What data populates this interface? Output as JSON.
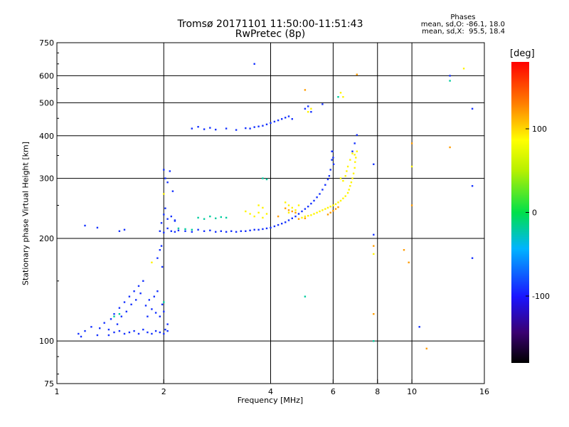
{
  "chart_data": {
    "type": "scatter",
    "title": "Tromsø 20171101 11:50:00-11:51:43",
    "subtitle": "RwPretec (8p)",
    "xlabel": "Frequency [MHz]",
    "ylabel": "Stationary phase Virtual Height [km]",
    "x_scale": "log",
    "y_scale": "log",
    "xlim": [
      1,
      16
    ],
    "ylim": [
      75,
      750
    ],
    "x_ticks": [
      {
        "value": 1,
        "label": "1"
      },
      {
        "value": 2,
        "label": "2"
      },
      {
        "value": 4,
        "label": "4"
      },
      {
        "value": 6,
        "label": "6"
      },
      {
        "value": 8,
        "label": "8"
      },
      {
        "value": 10,
        "label": "10"
      },
      {
        "value": 16,
        "label": "16"
      }
    ],
    "y_ticks": [
      {
        "value": 75,
        "label": "75"
      },
      {
        "value": 100,
        "label": "100"
      },
      {
        "value": 200,
        "label": "200"
      },
      {
        "value": 300,
        "label": "300"
      },
      {
        "value": 400,
        "label": "400"
      },
      {
        "value": 500,
        "label": "500"
      },
      {
        "value": 600,
        "label": "600"
      },
      {
        "value": 750,
        "label": "750"
      }
    ],
    "grid": true,
    "phases_header": {
      "title": "Phases",
      "line_o": "mean, sd,O: -86.1, 18.0",
      "line_x": "mean, sd,X:  95.5, 18.4"
    },
    "colorbar": {
      "unit": "[deg]",
      "range": [
        -180,
        180
      ],
      "ticks": [
        {
          "value": 100,
          "label": "100"
        },
        {
          "value": 0,
          "label": "0"
        },
        {
          "value": -100,
          "label": "-100"
        }
      ]
    },
    "series": [
      {
        "phase": -90,
        "points": [
          [
            1.15,
            105
          ],
          [
            1.17,
            103
          ],
          [
            1.2,
            107
          ],
          [
            1.25,
            110
          ],
          [
            1.3,
            104
          ],
          [
            1.32,
            109
          ],
          [
            1.36,
            113
          ],
          [
            1.4,
            108
          ],
          [
            1.42,
            116
          ],
          [
            1.45,
            120
          ],
          [
            1.48,
            112
          ],
          [
            1.5,
            125
          ],
          [
            1.52,
            118
          ],
          [
            1.55,
            130
          ],
          [
            1.57,
            122
          ],
          [
            1.6,
            135
          ],
          [
            1.62,
            128
          ],
          [
            1.65,
            140
          ],
          [
            1.67,
            132
          ],
          [
            1.7,
            145
          ],
          [
            1.72,
            138
          ],
          [
            1.75,
            150
          ],
          [
            1.78,
            127
          ],
          [
            1.8,
            118
          ],
          [
            1.82,
            132
          ],
          [
            1.85,
            124
          ],
          [
            1.88,
            135
          ],
          [
            1.9,
            121
          ],
          [
            1.92,
            140
          ],
          [
            1.95,
            118
          ],
          [
            1.98,
            128
          ],
          [
            2.0,
            122
          ],
          [
            2.02,
            108
          ],
          [
            2.05,
            112
          ],
          [
            1.6,
            106
          ],
          [
            1.65,
            107
          ],
          [
            1.7,
            105
          ],
          [
            1.75,
            108
          ],
          [
            1.8,
            106
          ],
          [
            1.85,
            105
          ],
          [
            1.9,
            107
          ],
          [
            1.95,
            106
          ],
          [
            2.0,
            105
          ],
          [
            2.05,
            107
          ],
          [
            1.55,
            105
          ],
          [
            1.5,
            107
          ],
          [
            1.45,
            106
          ],
          [
            1.4,
            104
          ],
          [
            1.92,
            175
          ],
          [
            1.95,
            185
          ],
          [
            1.97,
            190
          ],
          [
            1.98,
            165
          ],
          [
            1.97,
            222
          ],
          [
            2.0,
            235
          ],
          [
            2.02,
            245
          ],
          [
            2.05,
            228
          ],
          [
            2.1,
            232
          ],
          [
            2.15,
            226
          ],
          [
            2.0,
            318
          ],
          [
            2.02,
            300
          ],
          [
            2.05,
            292
          ],
          [
            2.08,
            315
          ],
          [
            2.12,
            275
          ],
          [
            2.15,
            225
          ],
          [
            1.95,
            210
          ],
          [
            2.0,
            208
          ],
          [
            2.05,
            214
          ],
          [
            2.1,
            210
          ],
          [
            2.15,
            209
          ],
          [
            2.2,
            211
          ],
          [
            2.3,
            210
          ],
          [
            2.4,
            209
          ],
          [
            2.5,
            212
          ],
          [
            2.6,
            210
          ],
          [
            2.7,
            211
          ],
          [
            2.8,
            209
          ],
          [
            2.9,
            210
          ],
          [
            3.0,
            209
          ],
          [
            3.1,
            210
          ],
          [
            3.2,
            209
          ],
          [
            3.3,
            210
          ],
          [
            3.4,
            210
          ],
          [
            3.5,
            211
          ],
          [
            3.6,
            212
          ],
          [
            3.7,
            212
          ],
          [
            3.8,
            213
          ],
          [
            3.9,
            214
          ],
          [
            4.0,
            215
          ],
          [
            4.1,
            217
          ],
          [
            4.2,
            219
          ],
          [
            4.3,
            221
          ],
          [
            4.4,
            223
          ],
          [
            4.5,
            226
          ],
          [
            4.6,
            229
          ],
          [
            4.7,
            232
          ],
          [
            4.8,
            236
          ],
          [
            4.9,
            240
          ],
          [
            5.0,
            244
          ],
          [
            5.1,
            248
          ],
          [
            5.2,
            253
          ],
          [
            5.3,
            258
          ],
          [
            5.4,
            264
          ],
          [
            5.5,
            270
          ],
          [
            5.6,
            278
          ],
          [
            5.7,
            287
          ],
          [
            5.8,
            298
          ],
          [
            5.85,
            305
          ],
          [
            5.9,
            318
          ],
          [
            5.95,
            340
          ],
          [
            5.97,
            360
          ],
          [
            2.4,
            420
          ],
          [
            2.5,
            425
          ],
          [
            2.6,
            418
          ],
          [
            2.7,
            422
          ],
          [
            2.8,
            417
          ],
          [
            3.0,
            420
          ],
          [
            3.2,
            416
          ],
          [
            3.4,
            421
          ],
          [
            3.5,
            420
          ],
          [
            3.6,
            424
          ],
          [
            3.7,
            426
          ],
          [
            3.8,
            428
          ],
          [
            3.9,
            432
          ],
          [
            4.0,
            436
          ],
          [
            4.1,
            440
          ],
          [
            4.2,
            444
          ],
          [
            4.3,
            448
          ],
          [
            4.4,
            452
          ],
          [
            4.5,
            456
          ],
          [
            4.6,
            448
          ],
          [
            5.0,
            480
          ],
          [
            5.1,
            488
          ],
          [
            5.2,
            470
          ],
          [
            5.6,
            495
          ],
          [
            1.2,
            218
          ],
          [
            1.3,
            215
          ],
          [
            1.5,
            210
          ],
          [
            1.55,
            212
          ],
          [
            10.5,
            110
          ],
          [
            14.8,
            175
          ],
          [
            14.8,
            480
          ],
          [
            14.8,
            285
          ],
          [
            12.8,
            600
          ],
          [
            3.6,
            650
          ],
          [
            7.8,
            330
          ],
          [
            7.8,
            205
          ],
          [
            7.0,
            402
          ],
          [
            6.9,
            380
          ],
          [
            6.8,
            360
          ],
          [
            5.95,
            360
          ],
          [
            6.0,
            345
          ],
          [
            6.02,
            330
          ]
        ]
      },
      {
        "phase": -20,
        "points": [
          [
            2.5,
            230
          ],
          [
            2.6,
            228
          ],
          [
            2.7,
            232
          ],
          [
            2.8,
            229
          ],
          [
            2.9,
            231
          ],
          [
            3.0,
            230
          ],
          [
            2.2,
            214
          ],
          [
            2.3,
            213
          ],
          [
            2.4,
            212
          ],
          [
            3.8,
            300
          ],
          [
            3.9,
            298
          ],
          [
            7.8,
            100
          ],
          [
            5.0,
            135
          ],
          [
            1.5,
            120
          ],
          [
            1.45,
            118
          ],
          [
            2.0,
            130
          ],
          [
            12.8,
            580
          ],
          [
            6.2,
            520
          ]
        ]
      },
      {
        "phase": 90,
        "points": [
          [
            3.4,
            240
          ],
          [
            3.5,
            236
          ],
          [
            3.6,
            232
          ],
          [
            3.7,
            238
          ],
          [
            3.8,
            230
          ],
          [
            3.9,
            236
          ],
          [
            3.7,
            250
          ],
          [
            3.8,
            246
          ],
          [
            4.5,
            250
          ],
          [
            4.6,
            246
          ],
          [
            4.7,
            242
          ],
          [
            4.5,
            238
          ],
          [
            4.4,
            255
          ],
          [
            4.8,
            250
          ],
          [
            4.9,
            230
          ],
          [
            5.0,
            232
          ],
          [
            5.1,
            233
          ],
          [
            5.2,
            234
          ],
          [
            5.3,
            236
          ],
          [
            5.4,
            238
          ],
          [
            5.5,
            240
          ],
          [
            5.6,
            242
          ],
          [
            5.7,
            244
          ],
          [
            5.8,
            246
          ],
          [
            5.9,
            248
          ],
          [
            6.0,
            250
          ],
          [
            6.1,
            252
          ],
          [
            6.2,
            255
          ],
          [
            6.3,
            258
          ],
          [
            6.4,
            262
          ],
          [
            6.5,
            266
          ],
          [
            6.6,
            272
          ],
          [
            6.65,
            278
          ],
          [
            6.7,
            285
          ],
          [
            6.75,
            292
          ],
          [
            6.8,
            300
          ],
          [
            6.85,
            310
          ],
          [
            6.9,
            322
          ],
          [
            6.92,
            335
          ],
          [
            6.95,
            345
          ],
          [
            6.3,
            300
          ],
          [
            6.4,
            295
          ],
          [
            6.5,
            305
          ],
          [
            6.55,
            315
          ],
          [
            6.6,
            325
          ],
          [
            6.7,
            340
          ],
          [
            6.8,
            355
          ],
          [
            6.9,
            352
          ],
          [
            7.0,
            360
          ],
          [
            6.3,
            535
          ],
          [
            6.4,
            520
          ],
          [
            5.2,
            480
          ],
          [
            5.1,
            470
          ],
          [
            14.0,
            630
          ],
          [
            10.0,
            325
          ],
          [
            7.8,
            180
          ],
          [
            1.85,
            170
          ],
          [
            2.0,
            270
          ]
        ]
      },
      {
        "phase": 120,
        "points": [
          [
            4.4,
            245
          ],
          [
            4.5,
            242
          ],
          [
            4.6,
            240
          ],
          [
            4.7,
            238
          ],
          [
            4.2,
            232
          ],
          [
            5.8,
            235
          ],
          [
            5.9,
            238
          ],
          [
            6.0,
            241
          ],
          [
            6.1,
            244
          ],
          [
            6.2,
            247
          ],
          [
            9.5,
            185
          ],
          [
            9.8,
            170
          ],
          [
            10.0,
            250
          ],
          [
            10.0,
            380
          ],
          [
            12.8,
            370
          ],
          [
            11.0,
            95
          ],
          [
            5.0,
            545
          ],
          [
            7.8,
            190
          ],
          [
            7.8,
            120
          ],
          [
            7.0,
            605
          ],
          [
            4.8,
            228
          ],
          [
            5.0,
            229
          ]
        ]
      }
    ]
  }
}
